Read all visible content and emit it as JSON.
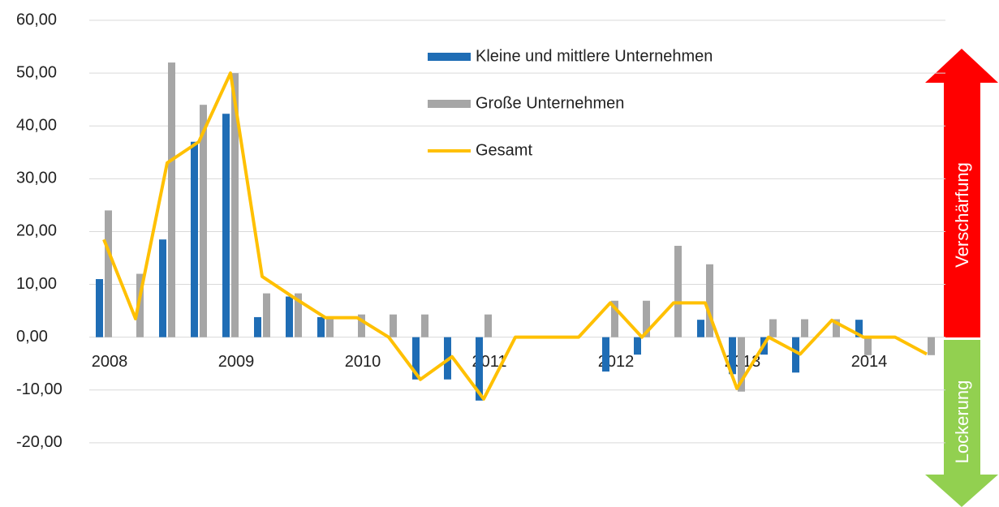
{
  "chart_data": {
    "type": "bar_line",
    "categories": [
      "2008",
      null,
      null,
      null,
      "2009",
      null,
      null,
      null,
      "2010",
      null,
      null,
      null,
      "2011",
      null,
      null,
      null,
      "2012",
      null,
      null,
      null,
      "2013",
      null,
      null,
      null,
      "2014",
      null,
      null
    ],
    "series": [
      {
        "name": "Kleine und mittlere Unternehmen",
        "type": "bar",
        "color": "#1f6db5",
        "values": [
          11,
          0,
          18.5,
          37,
          42.3,
          3.8,
          7.7,
          3.8,
          0,
          0,
          -8,
          -8,
          -12,
          0,
          0,
          0,
          -6.5,
          -3.3,
          0,
          3.3,
          -7,
          -3.3,
          -6.7,
          0,
          3.3,
          0,
          0
        ]
      },
      {
        "name": "Große Unternehmen",
        "type": "bar",
        "color": "#a6a6a6",
        "values": [
          24,
          12,
          52,
          44,
          50,
          8.3,
          8.3,
          3.7,
          4.3,
          4.3,
          4.3,
          0,
          4.3,
          0,
          0,
          0,
          6.9,
          6.9,
          17.3,
          13.8,
          -10.3,
          3.4,
          3.4,
          3.4,
          -3.4,
          0,
          -3.4
        ]
      },
      {
        "name": "Gesamt",
        "type": "line",
        "color": "#ffc000",
        "values": [
          18.5,
          3.5,
          33,
          37,
          50,
          11.5,
          7.5,
          3.7,
          3.7,
          0,
          -8,
          -3.7,
          -11.7,
          0,
          0,
          0,
          6.5,
          0,
          6.5,
          6.5,
          -9.7,
          0,
          -3.2,
          3.2,
          0,
          0,
          -3.2
        ]
      }
    ],
    "ylim": [
      -30,
      60
    ],
    "yticks": [
      {
        "value": -20,
        "label": "-20,00"
      },
      {
        "value": -10,
        "label": "-10,00"
      },
      {
        "value": 0,
        "label": "0,00"
      },
      {
        "value": 10,
        "label": "10,00"
      },
      {
        "value": 20,
        "label": "20,00"
      },
      {
        "value": 30,
        "label": "30,00"
      },
      {
        "value": 40,
        "label": "40,00"
      },
      {
        "value": 50,
        "label": "50,00"
      },
      {
        "value": 60,
        "label": "60,00"
      }
    ],
    "grid": true,
    "annotations": [
      "Verschärfung",
      "Lockerung"
    ]
  }
}
